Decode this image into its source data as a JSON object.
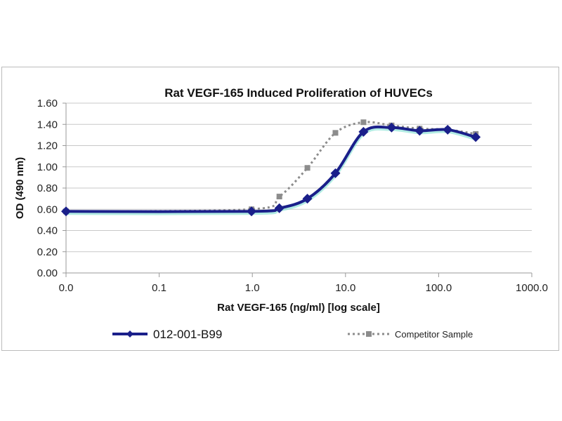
{
  "chart_data": {
    "type": "line",
    "title": "Rat VEGF-165 Induced Proliferation of HUVECs",
    "xlabel": "Rat VEGF-165 (ng/ml) [log scale]",
    "ylabel": "OD (490 nm)",
    "x_scale": "log",
    "xlim": [
      0.01,
      1000
    ],
    "ylim": [
      0,
      1.6
    ],
    "x_tick_values": [
      0.01,
      0.1,
      1,
      10,
      100,
      1000
    ],
    "x_tick_labels": [
      "0.0",
      "0.1",
      "1.0",
      "10.0",
      "100.0",
      "1000.0"
    ],
    "y_tick_values": [
      0,
      0.2,
      0.4,
      0.6,
      0.8,
      1.0,
      1.2,
      1.4,
      1.6
    ],
    "y_tick_labels": [
      "0.00",
      "0.20",
      "0.40",
      "0.60",
      "0.80",
      "1.00",
      "1.20",
      "1.40",
      "1.60"
    ],
    "grid": "horizontal",
    "legend_position": "bottom",
    "x": [
      0.01,
      0.98,
      1.95,
      3.9,
      7.8,
      15.6,
      31.25,
      62.5,
      125,
      250
    ],
    "series": [
      {
        "name": "012-001-B99",
        "values": [
          0.58,
          0.58,
          0.61,
          0.7,
          0.94,
          1.33,
          1.37,
          1.34,
          1.35,
          1.28
        ],
        "color": "#1a1f8a",
        "style": "solid",
        "marker": "diamond"
      },
      {
        "name": "Competitor Sample",
        "values": [
          0.58,
          0.6,
          0.72,
          0.99,
          1.32,
          1.42,
          1.39,
          1.36,
          1.35,
          1.31
        ],
        "color": "#8c8c8c",
        "style": "dotted",
        "marker": "square"
      }
    ]
  }
}
